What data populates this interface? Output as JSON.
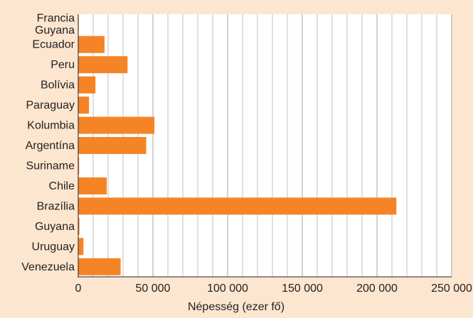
{
  "chart_data": {
    "type": "bar",
    "orientation": "horizontal",
    "categories": [
      [
        "Francia",
        "Guyana"
      ],
      [
        "Ecuador"
      ],
      [
        "Peru"
      ],
      [
        "Bolívia"
      ],
      [
        "Paraguay"
      ],
      [
        "Kolumbia"
      ],
      [
        "Argentína"
      ],
      [
        "Suriname"
      ],
      [
        "Chile"
      ],
      [
        "Brazília"
      ],
      [
        "Guyana"
      ],
      [
        "Uruguay"
      ],
      [
        "Venezuela"
      ]
    ],
    "values": [
      300,
      17600,
      33000,
      11500,
      7200,
      51000,
      45500,
      600,
      19100,
      213000,
      790,
      3500,
      28400
    ],
    "xlabel": "Népesség (ezer fő)",
    "ylabel": "",
    "xlim": [
      0,
      250000
    ],
    "xticks": [
      0,
      50000,
      100000,
      150000,
      200000,
      250000
    ],
    "xtick_labels": [
      "0",
      "50 000",
      "100 000",
      "150 000",
      "200 000",
      "250 000"
    ],
    "grid": "vertical",
    "colors": {
      "bar": "#f58426",
      "background": "#fde6cf",
      "plot_background": "#ffffff",
      "gridline": "#b3b3b3",
      "text": "#231f20"
    }
  }
}
